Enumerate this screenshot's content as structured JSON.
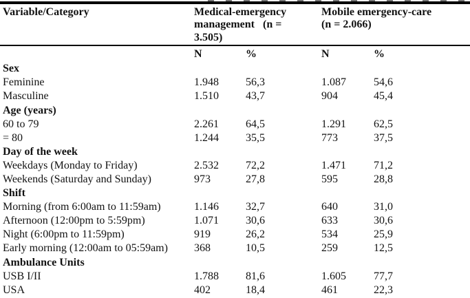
{
  "table": {
    "header": {
      "variable_label": "Variable/Category",
      "group1": "Medical-emergency\nmanagement   (n =\n3.505)",
      "group2": "Mobile emergency-care\n(n = 2.066)"
    },
    "subheader": [
      "N",
      "%",
      "N",
      "%"
    ],
    "rows": [
      {
        "type": "section",
        "label": "Sex",
        "values": [
          "",
          "",
          "",
          ""
        ]
      },
      {
        "type": "data",
        "label": "Feminine",
        "values": [
          "1.948",
          "56,3",
          "1.087",
          "54,6"
        ]
      },
      {
        "type": "data",
        "label": "Masculine",
        "values": [
          "1.510",
          "43,7",
          "904",
          "45,4"
        ]
      },
      {
        "type": "section",
        "label": "Age (years)",
        "values": [
          "",
          "",
          "",
          ""
        ]
      },
      {
        "type": "data",
        "label": "60 to 79",
        "values": [
          "2.261",
          "64,5",
          "1.291",
          "62,5"
        ]
      },
      {
        "type": "data",
        "label": "= 80",
        "values": [
          "1.244",
          "35,5",
          "773",
          "37,5"
        ]
      },
      {
        "type": "section",
        "label": "Day of the week",
        "values": [
          "",
          "",
          "",
          ""
        ]
      },
      {
        "type": "data",
        "label": "Weekdays (Monday to Friday)",
        "values": [
          "2.532",
          "72,2",
          "1.471",
          "71,2"
        ]
      },
      {
        "type": "data",
        "label": "Weekends (Saturday and Sunday)",
        "values": [
          "973",
          "27,8",
          "595",
          "28,8"
        ]
      },
      {
        "type": "section",
        "label": "Shift",
        "values": [
          "",
          "",
          "",
          ""
        ]
      },
      {
        "type": "data",
        "label": "Morning (from 6:00am to 11:59am)",
        "values": [
          "1.146",
          "32,7",
          "640",
          "31,0"
        ]
      },
      {
        "type": "data",
        "label": "Afternoon (12:00pm to 5:59pm)",
        "values": [
          "1.071",
          "30,6",
          "633",
          "30,6"
        ]
      },
      {
        "type": "data",
        "label": "Night (6:00pm to 11:59pm)",
        "values": [
          "919",
          "26,2",
          "534",
          "25,9"
        ]
      },
      {
        "type": "data",
        "label": "Early morning (12:00am to 05:59am)",
        "values": [
          "368",
          "10,5",
          "259",
          "12,5"
        ]
      },
      {
        "type": "section",
        "label": "Ambulance Units",
        "values": [
          "",
          "",
          "",
          ""
        ]
      },
      {
        "type": "data",
        "label": "USB I/II",
        "values": [
          "1.788",
          "81,6",
          "1.605",
          "77,7"
        ]
      },
      {
        "type": "data",
        "label": "USA",
        "values": [
          "402",
          "18,4",
          "461",
          "22,3"
        ]
      }
    ]
  }
}
